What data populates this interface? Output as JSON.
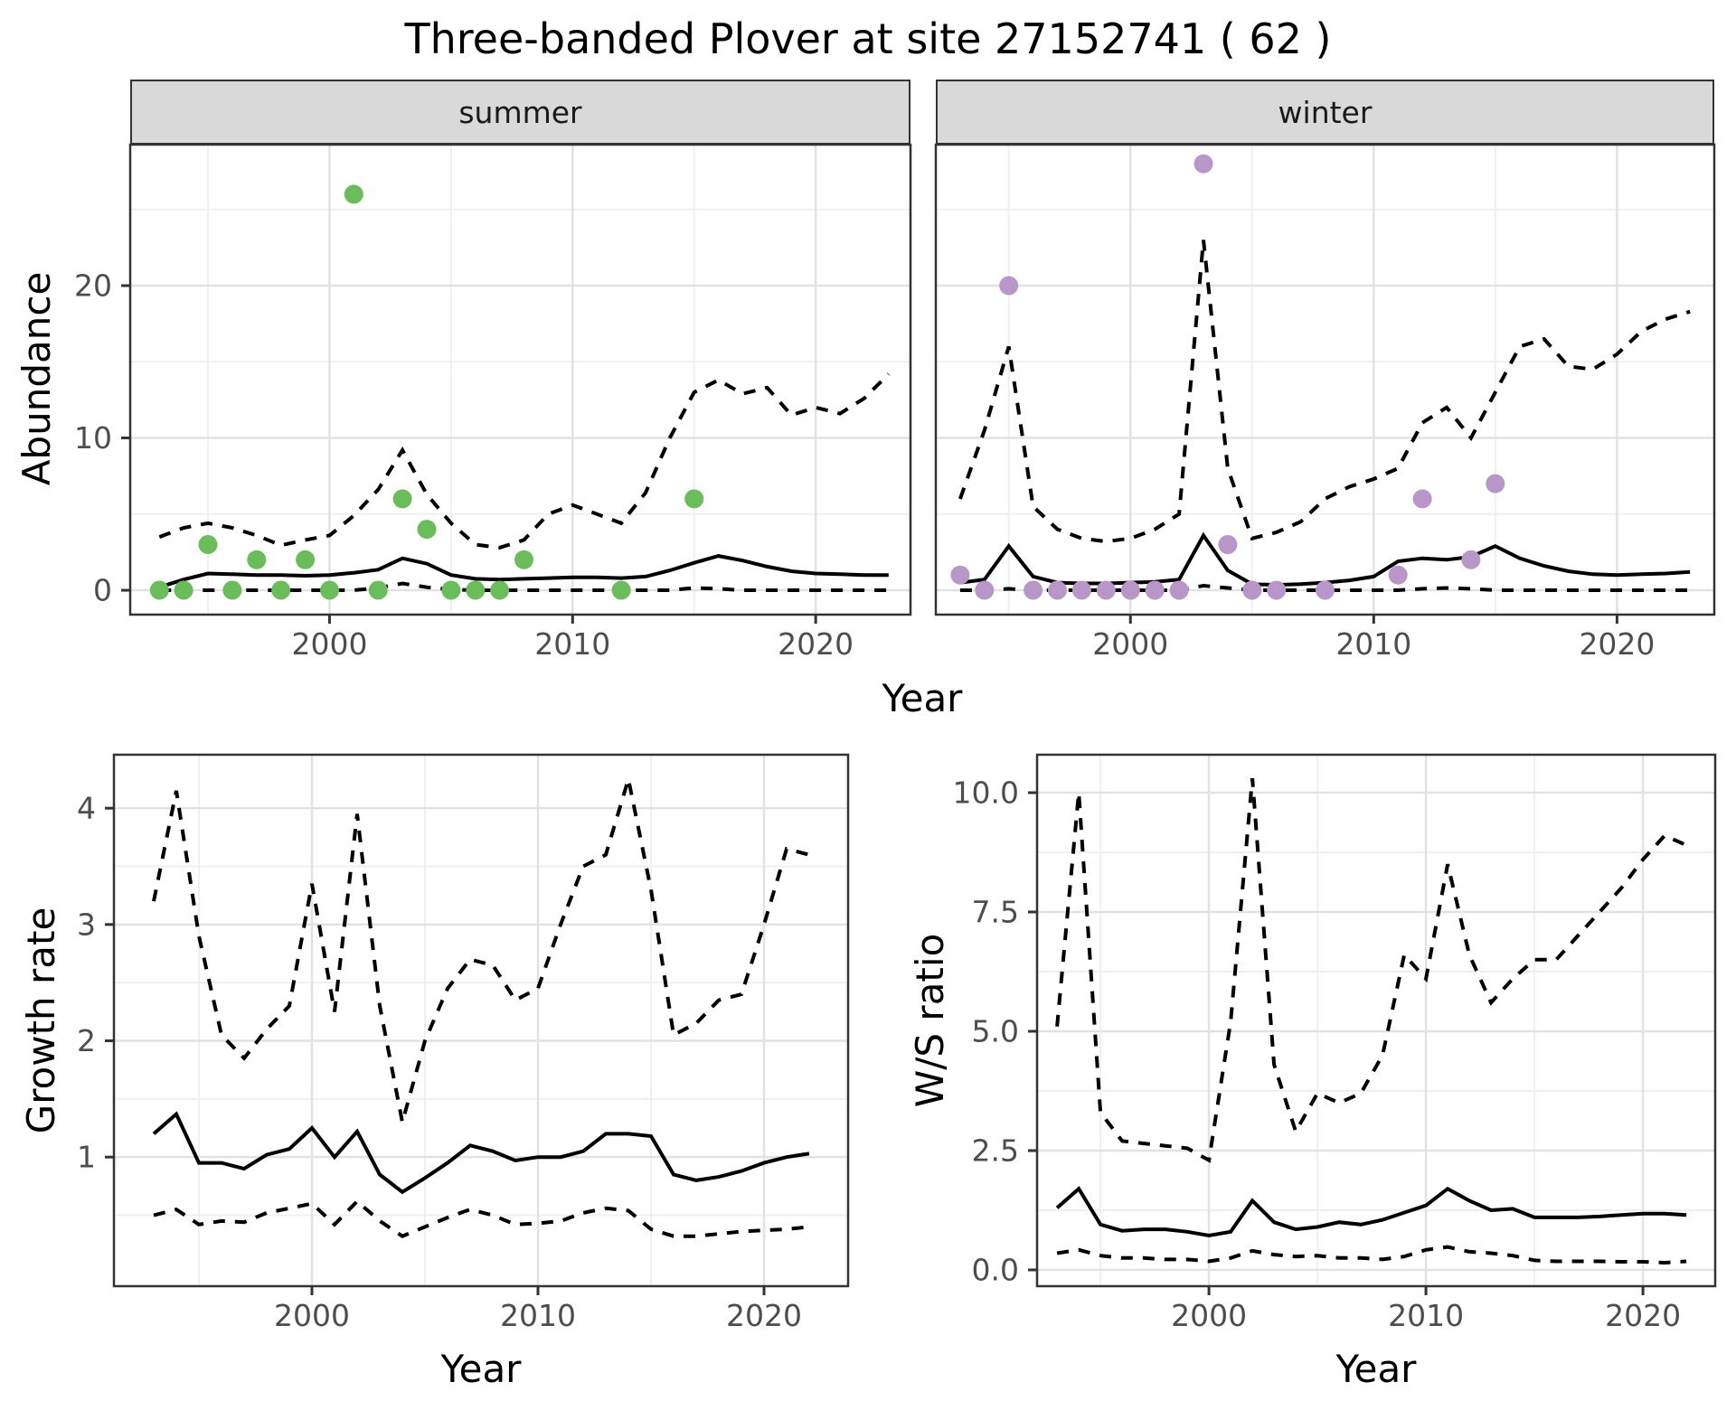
{
  "title": "Three-banded Plover at site 27152741 ( 62 )",
  "axes": {
    "year_label": "Year",
    "abundance_label": "Abundance",
    "growth_label": "Growth rate",
    "ws_label": "W/S ratio"
  },
  "facets": [
    {
      "label": "summer"
    },
    {
      "label": "winter"
    }
  ],
  "colors": {
    "summer_points": "#6abd5a",
    "winter_points": "#b996c8",
    "line": "#000000",
    "grid_major": "#e2e2e2",
    "grid_minor": "#f0f0f0",
    "panel_border": "#333333",
    "strip_fill": "#d9d9d9",
    "axis_text": "#4d4d4d",
    "tick_mark": "#333333"
  },
  "chart_data": [
    {
      "id": "abundance_summer",
      "type": "line",
      "facet": "summer",
      "ylabel": "Abundance",
      "xlabel": "Year",
      "xlim": [
        1991.8,
        2023.9
      ],
      "ylim": [
        -1.6,
        29.26
      ],
      "x_major_ticks": [
        2000,
        2010,
        2020
      ],
      "x_tick_labels": [
        "2000",
        "2010",
        "2020"
      ],
      "x_minor_ticks": [
        1995,
        2005,
        2015
      ],
      "y_major_ticks": [
        0,
        10,
        20
      ],
      "y_tick_labels": [
        "0",
        "10",
        "20"
      ],
      "y_minor_ticks": [
        5,
        15,
        25
      ],
      "grid": true,
      "legend_position": "none",
      "x": [
        1993,
        1994,
        1995,
        1996,
        1997,
        1998,
        1999,
        2000,
        2001,
        2002,
        2003,
        2004,
        2005,
        2006,
        2007,
        2008,
        2009,
        2010,
        2011,
        2012,
        2013,
        2014,
        2015,
        2016,
        2017,
        2018,
        2019,
        2020,
        2021,
        2022,
        2023
      ],
      "series": [
        {
          "name": "median",
          "style": "solid",
          "values": [
            0.2,
            0.7,
            1.1,
            1.05,
            1.0,
            1.0,
            0.95,
            1.0,
            1.15,
            1.35,
            2.1,
            1.75,
            1.0,
            0.75,
            0.7,
            0.75,
            0.8,
            0.85,
            0.85,
            0.8,
            0.9,
            1.3,
            1.8,
            2.25,
            1.95,
            1.55,
            1.25,
            1.1,
            1.05,
            1.0,
            1.0
          ]
        },
        {
          "name": "upper_ci",
          "style": "dashed",
          "values": [
            3.5,
            4.1,
            4.4,
            4.1,
            3.6,
            2.95,
            3.3,
            3.6,
            4.9,
            6.6,
            9.2,
            6.3,
            4.4,
            3.0,
            2.8,
            3.3,
            5.0,
            5.6,
            5.0,
            4.4,
            6.4,
            10.0,
            13.0,
            13.8,
            12.9,
            13.3,
            11.5,
            12.0,
            11.6,
            12.6,
            14.2
          ]
        },
        {
          "name": "lower_ci",
          "style": "dashed",
          "values": [
            0,
            0,
            0,
            0,
            0,
            0,
            0,
            0,
            0,
            0.15,
            0.45,
            0.2,
            0.05,
            0,
            0,
            0,
            0,
            0,
            0,
            0,
            0,
            0,
            0.15,
            0.1,
            0,
            0,
            0,
            0,
            0,
            0,
            0
          ]
        }
      ],
      "points": {
        "name": "observed_counts",
        "color": "#6abd5a",
        "data": [
          [
            1993,
            0
          ],
          [
            1994,
            0
          ],
          [
            1995,
            3
          ],
          [
            1996,
            0
          ],
          [
            1997,
            2
          ],
          [
            1998,
            0
          ],
          [
            1999,
            2
          ],
          [
            2000,
            0
          ],
          [
            2001,
            26
          ],
          [
            2002,
            0
          ],
          [
            2003,
            6
          ],
          [
            2004,
            4
          ],
          [
            2005,
            0
          ],
          [
            2006,
            0
          ],
          [
            2007,
            0
          ],
          [
            2008,
            2
          ],
          [
            2012,
            0
          ],
          [
            2015,
            6
          ]
        ]
      }
    },
    {
      "id": "abundance_winter",
      "type": "line",
      "facet": "winter",
      "ylabel": "Abundance",
      "xlabel": "Year",
      "xlim": [
        1992.0,
        2024.0
      ],
      "ylim": [
        -1.6,
        29.26
      ],
      "x_major_ticks": [
        2000,
        2010,
        2020
      ],
      "x_tick_labels": [
        "2000",
        "2010",
        "2020"
      ],
      "x_minor_ticks": [
        1995,
        2005,
        2015
      ],
      "y_major_ticks": [
        0,
        10,
        20
      ],
      "y_tick_labels": [],
      "y_minor_ticks": [
        5,
        15,
        25
      ],
      "grid": true,
      "legend_position": "none",
      "x": [
        1993,
        1994,
        1995,
        1996,
        1997,
        1998,
        1999,
        2000,
        2001,
        2002,
        2003,
        2004,
        2005,
        2006,
        2007,
        2008,
        2009,
        2010,
        2011,
        2012,
        2013,
        2014,
        2015,
        2016,
        2017,
        2018,
        2019,
        2020,
        2021,
        2022,
        2023
      ],
      "series": [
        {
          "name": "median",
          "style": "solid",
          "values": [
            0.5,
            0.7,
            2.9,
            0.9,
            0.5,
            0.45,
            0.45,
            0.5,
            0.55,
            0.7,
            3.6,
            1.3,
            0.4,
            0.35,
            0.4,
            0.5,
            0.65,
            0.9,
            1.9,
            2.1,
            2.0,
            2.2,
            2.9,
            2.1,
            1.6,
            1.25,
            1.05,
            1.0,
            1.05,
            1.1,
            1.2
          ]
        },
        {
          "name": "upper_ci",
          "style": "dashed",
          "values": [
            6.0,
            10.5,
            16.0,
            5.5,
            4.0,
            3.4,
            3.2,
            3.4,
            4.0,
            5.0,
            23.0,
            8.0,
            3.4,
            3.8,
            4.5,
            6.0,
            6.8,
            7.3,
            8.0,
            11.0,
            12.0,
            10.0,
            13.0,
            16.0,
            16.5,
            14.7,
            14.5,
            15.5,
            17.0,
            17.8,
            18.3
          ]
        },
        {
          "name": "lower_ci",
          "style": "dashed",
          "values": [
            0,
            0,
            0.1,
            0,
            0,
            0,
            0,
            0,
            0,
            0,
            0.3,
            0.15,
            0,
            0,
            0,
            0,
            0,
            0,
            0,
            0.1,
            0.15,
            0.1,
            0,
            0,
            0,
            0,
            0,
            0,
            0,
            0,
            0
          ]
        }
      ],
      "points": {
        "name": "observed_counts",
        "color": "#b996c8",
        "data": [
          [
            1993,
            1
          ],
          [
            1994,
            0
          ],
          [
            1995,
            20
          ],
          [
            1996,
            0
          ],
          [
            1997,
            0
          ],
          [
            1998,
            0
          ],
          [
            1999,
            0
          ],
          [
            2000,
            0
          ],
          [
            2001,
            0
          ],
          [
            2002,
            0
          ],
          [
            2003,
            28
          ],
          [
            2004,
            3
          ],
          [
            2005,
            0
          ],
          [
            2006,
            0
          ],
          [
            2008,
            0
          ],
          [
            2011,
            1
          ],
          [
            2012,
            6
          ],
          [
            2014,
            2
          ],
          [
            2015,
            7
          ]
        ]
      }
    },
    {
      "id": "growth_rate",
      "type": "line",
      "facet": null,
      "ylabel": "Growth rate",
      "xlabel": "Year",
      "xlim": [
        1991.24,
        2023.72
      ],
      "ylim": [
        -0.11,
        4.46
      ],
      "x_major_ticks": [
        2000,
        2010,
        2020
      ],
      "x_tick_labels": [
        "2000",
        "2010",
        "2020"
      ],
      "x_minor_ticks": [
        1995,
        2005,
        2015
      ],
      "y_major_ticks": [
        1,
        2,
        3,
        4
      ],
      "y_tick_labels": [
        "1",
        "2",
        "3",
        "4"
      ],
      "y_minor_ticks": [
        0.5,
        1.5,
        2.5,
        3.5
      ],
      "grid": true,
      "legend_position": "none",
      "x": [
        1993,
        1994,
        1995,
        1996,
        1997,
        1998,
        1999,
        2000,
        2001,
        2002,
        2003,
        2004,
        2005,
        2006,
        2007,
        2008,
        2009,
        2010,
        2011,
        2012,
        2013,
        2014,
        2015,
        2016,
        2017,
        2018,
        2019,
        2020,
        2021,
        2022
      ],
      "series": [
        {
          "name": "median",
          "style": "solid",
          "values": [
            1.2,
            1.37,
            0.95,
            0.95,
            0.9,
            1.02,
            1.07,
            1.25,
            1.0,
            1.22,
            0.85,
            0.7,
            0.82,
            0.95,
            1.1,
            1.05,
            0.97,
            1.0,
            1.0,
            1.05,
            1.2,
            1.2,
            1.18,
            0.85,
            0.8,
            0.83,
            0.88,
            0.95,
            1.0,
            1.03
          ]
        },
        {
          "name": "upper_ci",
          "style": "dashed",
          "values": [
            3.2,
            4.15,
            2.9,
            2.05,
            1.85,
            2.1,
            2.3,
            3.35,
            2.25,
            3.95,
            2.3,
            1.3,
            2.0,
            2.45,
            2.7,
            2.65,
            2.35,
            2.45,
            3.0,
            3.5,
            3.6,
            4.25,
            3.3,
            2.05,
            2.15,
            2.35,
            2.4,
            3.0,
            3.65,
            3.6
          ]
        },
        {
          "name": "lower_ci",
          "style": "dashed",
          "values": [
            0.5,
            0.55,
            0.42,
            0.45,
            0.44,
            0.52,
            0.56,
            0.6,
            0.42,
            0.62,
            0.45,
            0.32,
            0.4,
            0.48,
            0.55,
            0.5,
            0.42,
            0.43,
            0.45,
            0.52,
            0.56,
            0.54,
            0.38,
            0.32,
            0.32,
            0.34,
            0.36,
            0.37,
            0.38,
            0.4
          ]
        }
      ],
      "points": null
    },
    {
      "id": "ws_ratio",
      "type": "line",
      "facet": null,
      "ylabel": "W/S ratio",
      "xlabel": "Year",
      "xlim": [
        1992.08,
        2023.33
      ],
      "ylim": [
        -0.341,
        10.795
      ],
      "x_major_ticks": [
        2000,
        2010,
        2020
      ],
      "x_tick_labels": [
        "2000",
        "2010",
        "2020"
      ],
      "x_minor_ticks": [
        1995,
        2005,
        2015
      ],
      "y_major_ticks": [
        0,
        2.5,
        5,
        7.5,
        10
      ],
      "y_tick_labels": [
        "0.0",
        "2.5",
        "5.0",
        "7.5",
        "10.0"
      ],
      "y_minor_ticks": [
        1.25,
        3.75,
        6.25,
        8.75
      ],
      "grid": true,
      "legend_position": "none",
      "x": [
        1993,
        1994,
        1995,
        1996,
        1997,
        1998,
        1999,
        2000,
        2001,
        2002,
        2003,
        2004,
        2005,
        2006,
        2007,
        2008,
        2009,
        2010,
        2011,
        2012,
        2013,
        2014,
        2015,
        2016,
        2017,
        2018,
        2019,
        2020,
        2021,
        2022
      ],
      "series": [
        {
          "name": "median",
          "style": "solid",
          "values": [
            1.3,
            1.7,
            0.95,
            0.82,
            0.85,
            0.85,
            0.8,
            0.72,
            0.8,
            1.45,
            1.0,
            0.85,
            0.9,
            1.0,
            0.95,
            1.05,
            1.2,
            1.35,
            1.7,
            1.45,
            1.25,
            1.28,
            1.1,
            1.1,
            1.1,
            1.12,
            1.15,
            1.18,
            1.18,
            1.15
          ]
        },
        {
          "name": "upper_ci",
          "style": "dashed",
          "values": [
            5.1,
            10.0,
            3.3,
            2.7,
            2.65,
            2.6,
            2.55,
            2.3,
            5.2,
            10.3,
            4.3,
            2.9,
            3.7,
            3.5,
            3.7,
            4.5,
            6.6,
            6.1,
            8.5,
            6.6,
            5.6,
            6.1,
            6.5,
            6.5,
            7.0,
            7.5,
            8.0,
            8.6,
            9.1,
            8.9
          ]
        },
        {
          "name": "lower_ci",
          "style": "dashed",
          "values": [
            0.35,
            0.42,
            0.3,
            0.25,
            0.25,
            0.22,
            0.22,
            0.18,
            0.25,
            0.4,
            0.32,
            0.28,
            0.3,
            0.25,
            0.25,
            0.22,
            0.28,
            0.42,
            0.48,
            0.38,
            0.35,
            0.3,
            0.2,
            0.18,
            0.18,
            0.18,
            0.17,
            0.17,
            0.15,
            0.18
          ]
        }
      ],
      "points": null
    }
  ]
}
